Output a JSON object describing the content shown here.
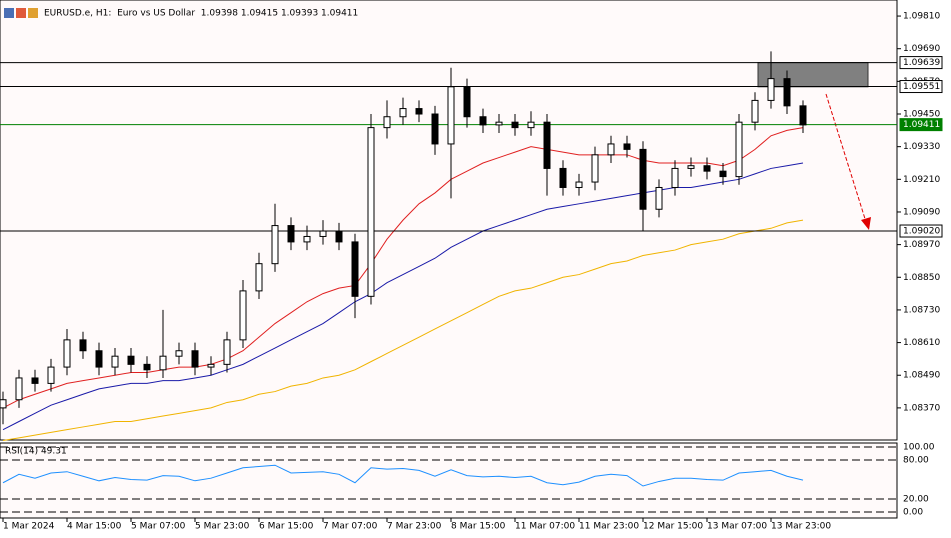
{
  "chart_data": {
    "type": "candlestick",
    "title": "EURUSD.e, H1:  Euro vs US Dollar  1.09398 1.09415 1.09393 1.09411",
    "categories": [
      "1 Mar 2024",
      null,
      null,
      null,
      "4 Mar 15:00",
      null,
      null,
      null,
      "5 Mar 07:00",
      null,
      null,
      null,
      "5 Mar 23:00",
      null,
      null,
      null,
      "6 Mar 15:00",
      null,
      null,
      null,
      "7 Mar 07:00",
      null,
      null,
      null,
      "7 Mar 23:00",
      null,
      null,
      null,
      "8 Mar 15:00",
      null,
      null,
      null,
      "11 Mar 07:00",
      null,
      null,
      null,
      "11 Mar 23:00",
      null,
      null,
      null,
      "12 Mar 15:00",
      null,
      null,
      null,
      "13 Mar 07:00",
      null,
      null,
      null,
      "13 Mar 23:00",
      null,
      null
    ],
    "open": [
      1.0837,
      1.084,
      1.0848,
      1.0846,
      1.0852,
      1.0862,
      1.0858,
      1.0852,
      1.0856,
      1.0853,
      1.0851,
      1.0856,
      1.0858,
      1.0852,
      1.0853,
      1.0862,
      1.088,
      1.089,
      1.0904,
      1.0898,
      1.09,
      1.0902,
      1.0898,
      1.0878,
      1.094,
      1.0944,
      1.0947,
      1.0945,
      1.0934,
      1.0955,
      1.0944,
      1.0941,
      1.0942,
      1.094,
      1.0942,
      1.0925,
      1.0918,
      1.092,
      1.093,
      1.0934,
      1.0932,
      1.091,
      1.0918,
      1.0925,
      1.0926,
      1.0924,
      1.0922,
      1.0942,
      1.095,
      1.0958,
      1.0948
    ],
    "high": [
      1.0843,
      1.0851,
      1.0851,
      1.0855,
      1.0866,
      1.0865,
      1.0861,
      1.0859,
      1.0859,
      1.0856,
      1.0873,
      1.0861,
      1.0861,
      1.0856,
      1.0865,
      1.0884,
      1.0894,
      1.0912,
      1.0907,
      1.0904,
      1.0906,
      1.0905,
      1.0901,
      1.0945,
      1.095,
      1.0951,
      1.095,
      1.0948,
      1.0962,
      1.0958,
      1.0947,
      1.0945,
      1.0945,
      1.0946,
      1.0945,
      1.0928,
      1.0923,
      1.0933,
      1.0937,
      1.0937,
      1.0935,
      1.0921,
      1.0928,
      1.0929,
      1.0929,
      1.0927,
      1.0945,
      1.0953,
      1.0968,
      1.0961,
      1.095
    ],
    "low": [
      1.0831,
      1.0837,
      1.0843,
      1.0843,
      1.0849,
      1.0855,
      1.0849,
      1.0849,
      1.085,
      1.0848,
      1.0848,
      1.0853,
      1.0849,
      1.0849,
      1.085,
      1.0859,
      1.0877,
      1.0887,
      1.0895,
      1.0895,
      1.0897,
      1.0895,
      1.087,
      1.0875,
      1.0936,
      1.0941,
      1.0942,
      1.093,
      1.0914,
      1.094,
      1.0938,
      1.0938,
      1.0937,
      1.0937,
      1.0915,
      1.0915,
      1.0915,
      1.0917,
      1.0927,
      1.0929,
      1.0902,
      1.0907,
      1.0915,
      1.0922,
      1.0921,
      1.0919,
      1.0919,
      1.0939,
      1.0947,
      1.0945,
      1.0938
    ],
    "close": [
      1.084,
      1.0848,
      1.0846,
      1.0852,
      1.0862,
      1.0858,
      1.0852,
      1.0856,
      1.0853,
      1.0851,
      1.0856,
      1.0858,
      1.0852,
      1.0853,
      1.0862,
      1.088,
      1.089,
      1.0904,
      1.0898,
      1.09,
      1.0902,
      1.0898,
      1.0878,
      1.094,
      1.0944,
      1.0947,
      1.0945,
      1.0934,
      1.0955,
      1.0944,
      1.0941,
      1.0942,
      1.094,
      1.0942,
      1.0925,
      1.0918,
      1.092,
      1.093,
      1.0934,
      1.0932,
      1.091,
      1.0918,
      1.0925,
      1.0926,
      1.0924,
      1.0922,
      1.0942,
      1.095,
      1.0958,
      1.0948,
      1.0941
    ],
    "candle_color": "#000000",
    "overlays": [
      {
        "color": "#e02020",
        "values": [
          1.0837,
          1.084,
          1.0842,
          1.0844,
          1.0846,
          1.0847,
          1.0848,
          1.0849,
          1.085,
          1.085,
          1.0851,
          1.0852,
          1.0852,
          1.0853,
          1.0855,
          1.0858,
          1.0863,
          1.0868,
          1.0872,
          1.0876,
          1.0879,
          1.0881,
          1.0882,
          1.089,
          1.0899,
          1.0906,
          1.0912,
          1.0916,
          1.0921,
          1.0924,
          1.0927,
          1.0929,
          1.0931,
          1.0933,
          1.0932,
          1.0931,
          1.093,
          1.093,
          1.093,
          1.093,
          1.0928,
          1.0927,
          1.0927,
          1.0927,
          1.0927,
          1.0926,
          1.0928,
          1.0932,
          1.0937,
          1.0939,
          1.094
        ]
      },
      {
        "color": "#1a1aa8",
        "values": [
          1.0829,
          1.0832,
          1.0835,
          1.0838,
          1.084,
          1.0842,
          1.0844,
          1.0845,
          1.0846,
          1.0846,
          1.0847,
          1.0847,
          1.0848,
          1.0849,
          1.0851,
          1.0853,
          1.0856,
          1.0859,
          1.0862,
          1.0865,
          1.0868,
          1.0872,
          1.0876,
          1.0879,
          1.0883,
          1.0886,
          1.0889,
          1.0892,
          1.0896,
          1.0899,
          1.0902,
          1.0904,
          1.0906,
          1.0908,
          1.091,
          1.0911,
          1.0912,
          1.0913,
          1.0914,
          1.0915,
          1.0916,
          1.0917,
          1.0918,
          1.0918,
          1.0919,
          1.092,
          1.0921,
          1.0923,
          1.0925,
          1.0926,
          1.0927
        ]
      },
      {
        "color": "#f0b400",
        "values": [
          1.0825,
          1.0826,
          1.0827,
          1.0828,
          1.0829,
          1.083,
          1.0831,
          1.0832,
          1.0832,
          1.0833,
          1.0834,
          1.0835,
          1.0836,
          1.0837,
          1.0839,
          1.084,
          1.0842,
          1.0843,
          1.0845,
          1.0846,
          1.0848,
          1.0849,
          1.0851,
          1.0854,
          1.0857,
          1.086,
          1.0863,
          1.0866,
          1.0869,
          1.0872,
          1.0875,
          1.0878,
          1.088,
          1.0881,
          1.0883,
          1.0885,
          1.0886,
          1.0888,
          1.089,
          1.0891,
          1.0893,
          1.0894,
          1.0895,
          1.0897,
          1.0898,
          1.0899,
          1.0901,
          1.0902,
          1.0903,
          1.0905,
          1.0906
        ]
      }
    ],
    "ylim": [
      1.08252,
      1.09869
    ],
    "yticks": [
      {
        "value": 1.0981,
        "label": "1.09810"
      },
      {
        "value": 1.0969,
        "label": "1.09690"
      },
      {
        "value": 1.0957,
        "label": "1.09570"
      },
      {
        "value": 1.0945,
        "label": "1.09450"
      },
      {
        "value": 1.0933,
        "label": "1.09330"
      },
      {
        "value": 1.0921,
        "label": "1.09210"
      },
      {
        "value": 1.0909,
        "label": "1.09090"
      },
      {
        "value": 1.0897,
        "label": "1.08970"
      },
      {
        "value": 1.0885,
        "label": "1.08850"
      },
      {
        "value": 1.0873,
        "label": "1.08730"
      },
      {
        "value": 1.0861,
        "label": "1.08610"
      },
      {
        "value": 1.0849,
        "label": "1.08490"
      },
      {
        "value": 1.0837,
        "label": "1.08370"
      }
    ],
    "levels": [
      {
        "value": 1.09639,
        "color": "#000000"
      },
      {
        "value": 1.09551,
        "color": "#000000"
      },
      {
        "value": 1.09411,
        "color": "#008000"
      },
      {
        "value": 1.0902,
        "label": "1.09020",
        "color": "#000000"
      }
    ],
    "zone": {
      "ylim": [
        1.0955,
        1.09639
      ],
      "color": "#808080"
    },
    "rsi": {
      "label": "RSI(14) 49.31",
      "color": "#1e90ff",
      "values": [
        45,
        58,
        52,
        60,
        62,
        55,
        48,
        53,
        50,
        49,
        56,
        55,
        48,
        52,
        60,
        68,
        70,
        72,
        60,
        61,
        62,
        58,
        45,
        68,
        66,
        67,
        64,
        55,
        65,
        56,
        54,
        55,
        53,
        55,
        45,
        42,
        46,
        55,
        58,
        56,
        40,
        47,
        52,
        52,
        50,
        49,
        60,
        62,
        64,
        55,
        49
      ],
      "ylim": [
        0,
        100
      ],
      "yticks": [
        {
          "value": 100,
          "label": "100.00"
        },
        {
          "value": 80,
          "label": "80.00"
        },
        {
          "value": 20,
          "label": "20.00"
        },
        {
          "value": 0,
          "label": "0.00"
        }
      ]
    }
  }
}
